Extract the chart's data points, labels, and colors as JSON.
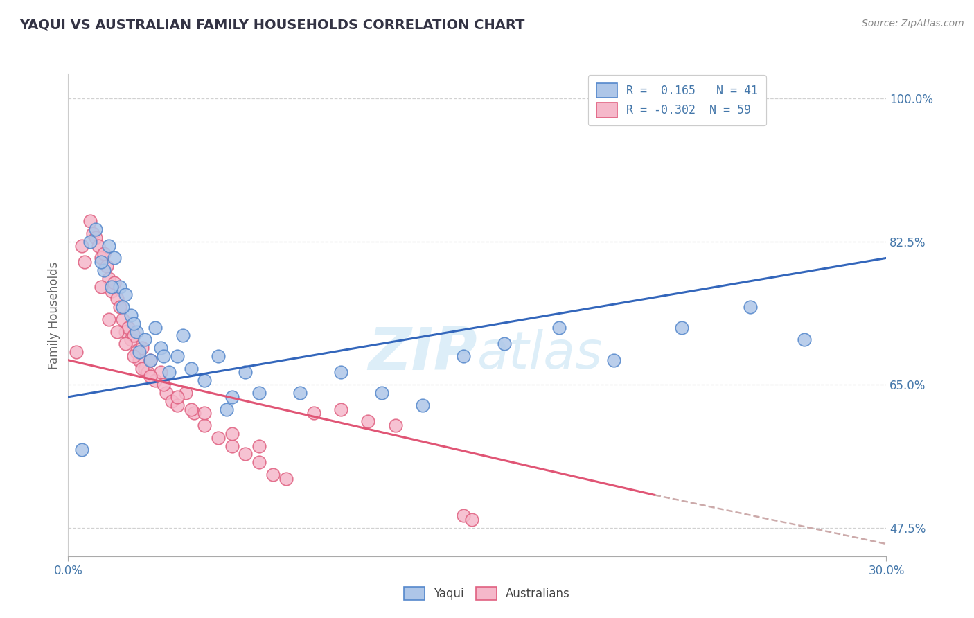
{
  "title": "YAQUI VS AUSTRALIAN FAMILY HOUSEHOLDS CORRELATION CHART",
  "source": "Source: ZipAtlas.com",
  "ylabel": "Family Households",
  "xlim": [
    0.0,
    30.0
  ],
  "ylim": [
    44.0,
    103.0
  ],
  "x_ticks": [
    0.0,
    30.0
  ],
  "x_tick_labels": [
    "0.0%",
    "30.0%"
  ],
  "y_ticks": [
    47.5,
    65.0,
    82.5,
    100.0
  ],
  "y_tick_labels": [
    "47.5%",
    "65.0%",
    "82.5%",
    "100.0%"
  ],
  "yaqui_color": "#aec6e8",
  "yaqui_edge": "#5588cc",
  "australian_color": "#f5b8ca",
  "australian_edge": "#e06080",
  "blue_line_color": "#3366bb",
  "pink_line_color": "#e05575",
  "dashed_color": "#ccaaaa",
  "watermark_color": "#ddeef8",
  "background_color": "#ffffff",
  "title_color": "#333344",
  "tick_color": "#4477aa",
  "ylabel_color": "#666666",
  "grid_color": "#cccccc",
  "yaqui_R": 0.165,
  "yaqui_N": 41,
  "australian_R": -0.302,
  "australian_N": 59,
  "blue_line_x0": 0.0,
  "blue_line_y0": 63.5,
  "blue_line_x1": 30.0,
  "blue_line_y1": 80.5,
  "pink_solid_x0": 0.0,
  "pink_solid_y0": 68.0,
  "pink_solid_x1": 21.5,
  "pink_solid_y1": 51.5,
  "pink_dash_x0": 21.5,
  "pink_dash_y0": 51.5,
  "pink_dash_x1": 30.0,
  "pink_dash_y1": 45.5,
  "yaqui_x": [
    0.5,
    0.8,
    1.0,
    1.3,
    1.5,
    1.7,
    1.9,
    2.1,
    2.3,
    2.5,
    2.6,
    2.8,
    3.0,
    3.2,
    3.4,
    3.7,
    4.0,
    4.2,
    4.5,
    5.0,
    5.5,
    6.0,
    6.5,
    7.0,
    8.5,
    10.0,
    11.5,
    13.0,
    14.5,
    16.0,
    18.0,
    20.0,
    22.5,
    25.0,
    27.0,
    1.2,
    1.6,
    2.0,
    2.4,
    3.5,
    5.8
  ],
  "yaqui_y": [
    57.0,
    82.5,
    84.0,
    79.0,
    82.0,
    80.5,
    77.0,
    76.0,
    73.5,
    71.5,
    69.0,
    70.5,
    68.0,
    72.0,
    69.5,
    66.5,
    68.5,
    71.0,
    67.0,
    65.5,
    68.5,
    63.5,
    66.5,
    64.0,
    64.0,
    66.5,
    64.0,
    62.5,
    68.5,
    70.0,
    72.0,
    68.0,
    72.0,
    74.5,
    70.5,
    80.0,
    77.0,
    74.5,
    72.5,
    68.5,
    62.0
  ],
  "australian_x": [
    0.3,
    0.5,
    0.6,
    0.8,
    0.9,
    1.0,
    1.1,
    1.2,
    1.3,
    1.4,
    1.5,
    1.6,
    1.7,
    1.8,
    1.9,
    2.0,
    2.1,
    2.2,
    2.3,
    2.4,
    2.5,
    2.6,
    2.7,
    2.8,
    2.9,
    3.0,
    3.2,
    3.4,
    3.6,
    3.8,
    4.0,
    4.3,
    4.6,
    5.0,
    5.5,
    6.0,
    6.5,
    7.0,
    7.5,
    8.0,
    9.0,
    10.0,
    11.0,
    12.0,
    14.5,
    1.2,
    1.5,
    1.8,
    2.1,
    2.4,
    2.7,
    3.0,
    3.5,
    4.0,
    4.5,
    5.0,
    6.0,
    7.0,
    14.8
  ],
  "australian_y": [
    69.0,
    82.0,
    80.0,
    85.0,
    83.5,
    83.0,
    82.0,
    80.5,
    81.0,
    79.5,
    78.0,
    76.5,
    77.5,
    75.5,
    74.5,
    73.0,
    71.5,
    72.0,
    70.5,
    71.0,
    69.0,
    68.0,
    69.5,
    67.0,
    66.5,
    68.0,
    65.5,
    66.5,
    64.0,
    63.0,
    62.5,
    64.0,
    61.5,
    60.0,
    58.5,
    57.5,
    56.5,
    55.5,
    54.0,
    53.5,
    61.5,
    62.0,
    60.5,
    60.0,
    49.0,
    77.0,
    73.0,
    71.5,
    70.0,
    68.5,
    67.0,
    66.0,
    65.0,
    63.5,
    62.0,
    61.5,
    59.0,
    57.5,
    48.5
  ]
}
